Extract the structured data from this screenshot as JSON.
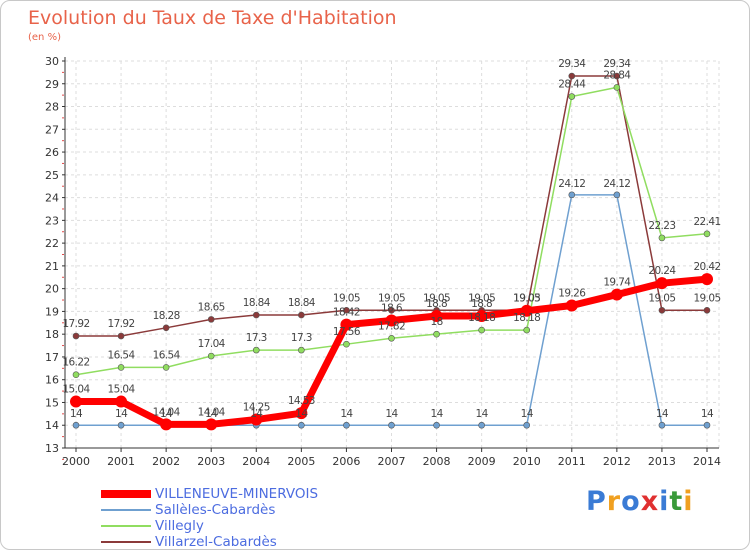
{
  "chart_data": {
    "type": "line",
    "title": "Evolution du Taux de Taxe d'Habitation",
    "unit_label": "(en %)",
    "x": [
      "2000",
      "2001",
      "2002",
      "2003",
      "2004",
      "2005",
      "2006",
      "2007",
      "2008",
      "2009",
      "2010",
      "2011",
      "2012",
      "2013",
      "2014"
    ],
    "ylim": [
      13,
      30
    ],
    "yticks": [
      "13",
      "14",
      "15",
      "16",
      "17",
      "18",
      "19",
      "20",
      "21",
      "22",
      "23",
      "24",
      "25",
      "26",
      "27",
      "28",
      "29",
      "30"
    ],
    "grid": true,
    "legend_position": "bottom-left",
    "series": [
      {
        "name": "VILLENEUVE-MINERVOIS",
        "color": "#ff0000",
        "values": [
          15.04,
          15.04,
          14.04,
          14.04,
          14.25,
          14.53,
          18.42,
          18.6,
          18.8,
          18.8,
          19.03,
          19.26,
          19.74,
          20.24,
          20.42
        ],
        "labels": [
          "15.04",
          "15.04",
          "14.04",
          "14.04",
          "14.25",
          "14.53",
          "18.42",
          "18.6",
          "18.8",
          "18.8",
          "19.03",
          "19.26",
          "19.74",
          "20.24",
          "20.42"
        ]
      },
      {
        "name": "Sallèles-Cabardès",
        "color": "#6fa0d0",
        "values": [
          14,
          14,
          14,
          14,
          14,
          14,
          14,
          14,
          14,
          14,
          14,
          24.12,
          24.12,
          14,
          14
        ],
        "labels": [
          "14",
          "14",
          "14",
          "14",
          "14",
          "14",
          "14",
          "14",
          "14",
          "14",
          "14",
          "24.12",
          "24.12",
          "14",
          "14"
        ]
      },
      {
        "name": "Villegly",
        "color": "#90dd60",
        "values": [
          16.22,
          16.54,
          16.54,
          17.04,
          17.3,
          17.3,
          17.56,
          17.82,
          18,
          18.18,
          18.18,
          28.44,
          28.84,
          22.23,
          22.41
        ],
        "labels": [
          "16.22",
          "16.54",
          "16.54",
          "17.04",
          "17.3",
          "17.3",
          "17.56",
          "17.82",
          "18",
          "18.18",
          "18.18",
          "28.44",
          "28.84",
          "22.23",
          "22.41"
        ]
      },
      {
        "name": "Villarzel-Cabardès",
        "color": "#8b3a3a",
        "values": [
          17.92,
          17.92,
          18.28,
          18.65,
          18.84,
          18.84,
          19.05,
          19.05,
          19.05,
          19.05,
          19.05,
          29.34,
          29.34,
          19.05,
          19.05
        ],
        "labels": [
          "17.92",
          "17.92",
          "18.28",
          "18.65",
          "18.84",
          "18.84",
          "19.05",
          "19.05",
          "19.05",
          "19.05",
          "19.05",
          "29.34",
          "29.34",
          "19.05",
          "19.05"
        ]
      }
    ]
  },
  "logo": {
    "text": "Proxiti",
    "colors": [
      "#3a7bd5",
      "#f0a020",
      "#3a7bd5",
      "#e03030",
      "#3a7bd5",
      "#3a9a3a",
      "#f0a020"
    ]
  }
}
